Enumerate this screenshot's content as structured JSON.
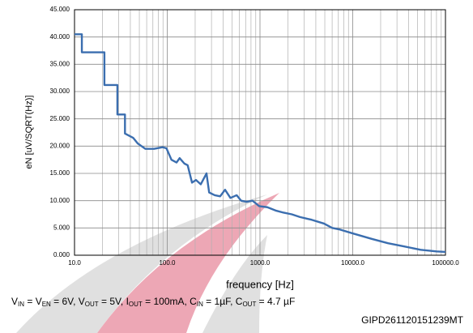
{
  "chart_data": {
    "type": "line",
    "x_label": "frequency [Hz]",
    "y_label": "eN [uV/SQRT(Hz)]",
    "conditions": [
      "V",
      "IN",
      " = V",
      "EN",
      " = 6V, V",
      "OUT",
      " = 5V, I",
      "OUT",
      " = 100mA, C",
      "IN",
      " = 1µF, C",
      "OUT",
      " = 4.7 µF"
    ],
    "footer": "GIPD261120151239MT",
    "log_x": true,
    "grid": true,
    "xlim": [
      10,
      100000
    ],
    "ylim": [
      0,
      45
    ],
    "xticks": [
      {
        "value": 10,
        "label": "10.0"
      },
      {
        "value": 100,
        "label": "100.0"
      },
      {
        "value": 1000,
        "label": "1000.0"
      },
      {
        "value": 10000,
        "label": "10000.0"
      },
      {
        "value": 100000,
        "label": "100000.0"
      }
    ],
    "yticks": [
      {
        "value": 0,
        "label": "0.000"
      },
      {
        "value": 5,
        "label": "5.000"
      },
      {
        "value": 10,
        "label": "10.000"
      },
      {
        "value": 15,
        "label": "15.000"
      },
      {
        "value": 20,
        "label": "20.000"
      },
      {
        "value": 25,
        "label": "25.000"
      },
      {
        "value": 30,
        "label": "30.000"
      },
      {
        "value": 35,
        "label": "35.000"
      },
      {
        "value": 40,
        "label": "40.000"
      },
      {
        "value": 45,
        "label": "45.000"
      }
    ],
    "x": [
      10,
      12,
      12,
      21,
      21,
      29,
      29,
      35,
      35,
      43,
      48,
      58,
      72,
      89,
      98,
      111,
      126,
      136,
      153,
      166,
      185,
      204,
      230,
      265,
      283,
      325,
      372,
      420,
      480,
      560,
      625,
      720,
      830,
      980,
      1200,
      1470,
      1800,
      2200,
      2700,
      3600,
      4900,
      6000,
      7300,
      10000,
      16000,
      24000,
      36000,
      54000,
      80000,
      100000
    ],
    "series": [
      {
        "color": "#3b6eaf",
        "values": [
          40.5,
          40.5,
          37.2,
          37.2,
          31.2,
          31.2,
          25.8,
          25.8,
          22.3,
          21.5,
          20.5,
          19.5,
          19.5,
          19.8,
          19.6,
          17.5,
          17.0,
          17.8,
          16.8,
          16.5,
          13.3,
          13.8,
          13.0,
          15.0,
          11.5,
          11.0,
          10.8,
          12.0,
          10.5,
          11.0,
          10.0,
          9.8,
          10.0,
          9.0,
          8.8,
          8.2,
          7.8,
          7.5,
          7.0,
          6.5,
          5.8,
          5.0,
          4.7,
          4.0,
          3.0,
          2.2,
          1.6,
          1.0,
          0.7,
          0.6
        ]
      }
    ]
  }
}
